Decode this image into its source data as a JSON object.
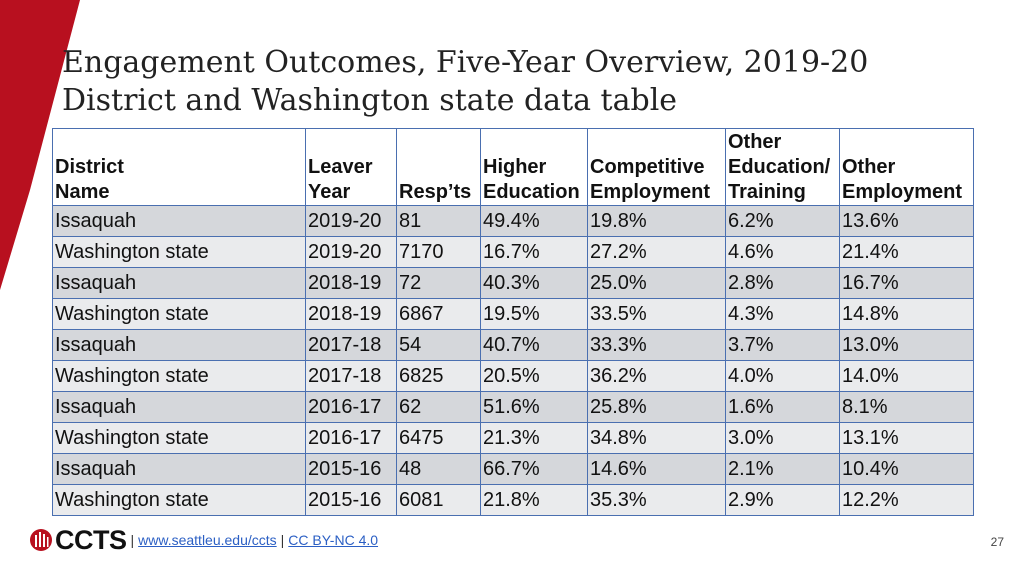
{
  "title_line1": "Engagement Outcomes, Five-Year Overview, 2019-20",
  "title_line2": "District and Washington state data table",
  "columns": [
    {
      "lines": [
        "District",
        "Name"
      ]
    },
    {
      "lines": [
        "Leaver",
        "Year"
      ]
    },
    {
      "lines": [
        "Resp’ts"
      ]
    },
    {
      "lines": [
        "Higher",
        "Education"
      ]
    },
    {
      "lines": [
        "Competitive",
        "Employment"
      ]
    },
    {
      "lines": [
        "Other",
        "Education/",
        "Training"
      ]
    },
    {
      "lines": [
        "Other",
        "Employment"
      ]
    }
  ],
  "rows": [
    [
      "Issaquah",
      "2019-20",
      "81",
      "49.4%",
      "19.8%",
      "6.2%",
      "13.6%"
    ],
    [
      "Washington state",
      "2019-20",
      "7170",
      "16.7%",
      "27.2%",
      "4.6%",
      "21.4%"
    ],
    [
      "Issaquah",
      "2018-19",
      "72",
      "40.3%",
      "25.0%",
      "2.8%",
      "16.7%"
    ],
    [
      "Washington state",
      "2018-19",
      "6867",
      "19.5%",
      "33.5%",
      "4.3%",
      "14.8%"
    ],
    [
      "Issaquah",
      "2017-18",
      "54",
      "40.7%",
      "33.3%",
      "3.7%",
      "13.0%"
    ],
    [
      "Washington state",
      "2017-18",
      "6825",
      "20.5%",
      "36.2%",
      "4.0%",
      "14.0%"
    ],
    [
      "Issaquah",
      "2016-17",
      "62",
      "51.6%",
      "25.8%",
      "1.6%",
      "8.1%"
    ],
    [
      "Washington state",
      "2016-17",
      "6475",
      "21.3%",
      "34.8%",
      "3.0%",
      "13.1%"
    ],
    [
      "Issaquah",
      "2015-16",
      "48",
      "66.7%",
      "14.6%",
      "2.1%",
      "10.4%"
    ],
    [
      "Washington state",
      "2015-16",
      "6081",
      "21.8%",
      "35.3%",
      "2.9%",
      "12.2%"
    ]
  ],
  "footer": {
    "logo_text": "CCTS",
    "separator": "|",
    "link1": "www.seattleu.edu/ccts",
    "link2": "CC BY-NC 4.0"
  },
  "page_number": "27",
  "colors": {
    "accent_red": "#b8101f",
    "table_border": "#4a6fb0",
    "row_dark": "#d5d7db",
    "row_light": "#eaebed",
    "link": "#2b5fc4"
  }
}
